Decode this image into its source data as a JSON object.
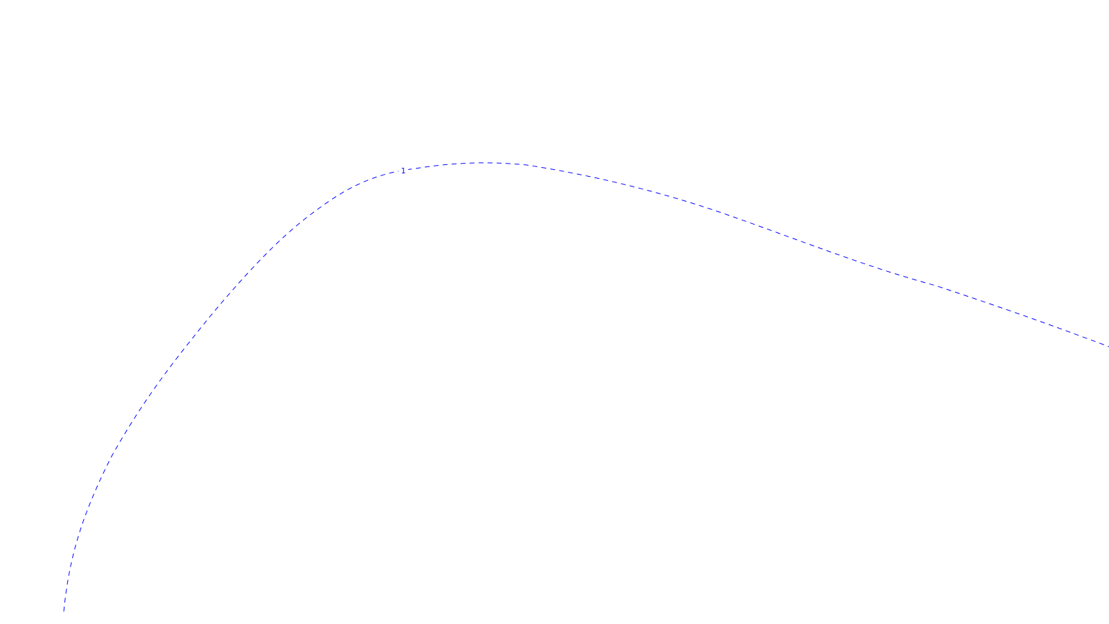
{
  "diagram": {
    "background_color": "#ffffff",
    "line_color": "#0000ff",
    "line_style": "dashed",
    "contours": [
      {
        "label": "1"
      }
    ]
  }
}
